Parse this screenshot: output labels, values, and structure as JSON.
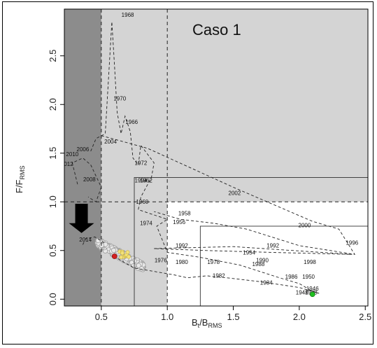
{
  "chart_data": {
    "type": "line",
    "title": "Caso 1",
    "xlabel": {
      "main": "B",
      "sub1": "t",
      "mid": "/B",
      "sub2": "RMS"
    },
    "ylabel": {
      "main": "F/F",
      "sub": "RMS"
    },
    "xlim": [
      0.22,
      2.52
    ],
    "ylim": [
      -0.07,
      2.98
    ],
    "xticks": [
      0.5,
      1.0,
      1.5,
      2.0,
      2.5
    ],
    "xtick_labels": [
      "0.5",
      "1.0",
      "1.5",
      "2.0",
      "2.5"
    ],
    "yticks": [
      0.0,
      0.5,
      1.0,
      1.5,
      2.0,
      2.5
    ],
    "ytick_labels": [
      "0.0",
      "0.5",
      "1.0",
      "1.5",
      "2.0",
      "2.5"
    ],
    "grid": false,
    "zones": [
      {
        "name": "dark-zone",
        "x": [
          0.22,
          0.5
        ],
        "y": [
          -0.07,
          2.98
        ],
        "color": "#8c8c8c"
      },
      {
        "name": "light-zone",
        "x": [
          0.5,
          2.52
        ],
        "y": [
          -0.07,
          2.98
        ],
        "color": "#d4d4d4"
      },
      {
        "name": "white-zone",
        "x": [
          1.0,
          2.52
        ],
        "y": [
          -0.07,
          1.0
        ],
        "color": "#ffffff"
      }
    ],
    "ref_lines": [
      {
        "name": "ref-x-0.5",
        "orient": "v",
        "value": 0.5
      },
      {
        "name": "ref-x-1.0",
        "orient": "v",
        "value": 1.0
      },
      {
        "name": "ref-y-1.0",
        "orient": "h",
        "value": 1.0
      }
    ],
    "boxes": [
      {
        "name": "box-upper",
        "x": [
          0.75,
          2.52
        ],
        "y": [
          -0.07,
          1.25
        ]
      },
      {
        "name": "box-lower",
        "x": [
          1.25,
          2.52
        ],
        "y": [
          -0.07,
          0.75
        ]
      }
    ],
    "trajectory": [
      [
        0.42,
        1.52
      ],
      [
        0.46,
        1.65
      ],
      [
        0.53,
        1.7
      ],
      [
        0.58,
        2.85
      ],
      [
        0.6,
        2.4
      ],
      [
        0.62,
        1.92
      ],
      [
        0.65,
        1.7
      ],
      [
        0.68,
        1.88
      ],
      [
        0.72,
        1.72
      ],
      [
        0.74,
        1.45
      ],
      [
        0.78,
        1.38
      ],
      [
        0.8,
        1.58
      ],
      [
        0.9,
        1.4
      ],
      [
        0.88,
        1.25
      ],
      [
        0.8,
        1.05
      ],
      [
        0.78,
        0.92
      ],
      [
        1.0,
        0.82
      ],
      [
        0.92,
        0.75
      ],
      [
        1.0,
        0.48
      ],
      [
        1.25,
        0.43
      ],
      [
        1.55,
        0.35
      ],
      [
        1.85,
        0.22
      ],
      [
        2.0,
        0.16
      ],
      [
        2.1,
        0.08
      ],
      [
        2.15,
        0.06
      ],
      [
        2.0,
        0.12
      ],
      [
        1.7,
        0.18
      ],
      [
        1.45,
        0.22
      ],
      [
        1.3,
        0.24
      ],
      [
        1.15,
        0.22
      ],
      [
        1.05,
        0.25
      ],
      [
        0.75,
        0.32
      ],
      [
        0.62,
        0.42
      ]
    ],
    "loops": [
      {
        "name": "loop-1992",
        "points": [
          [
            0.9,
            0.52
          ],
          [
            1.5,
            0.54
          ],
          [
            2.4,
            0.46
          ],
          [
            1.8,
            0.48
          ],
          [
            1.3,
            0.5
          ],
          [
            0.9,
            0.52
          ]
        ]
      },
      {
        "name": "loop-2002",
        "points": [
          [
            0.5,
            1.68
          ],
          [
            0.85,
            1.55
          ],
          [
            1.5,
            1.15
          ],
          [
            2.1,
            0.8
          ],
          [
            2.3,
            0.72
          ],
          [
            2.42,
            0.46
          ],
          [
            2.0,
            0.55
          ],
          [
            1.6,
            0.72
          ],
          [
            1.35,
            0.78
          ],
          [
            1.1,
            0.82
          ],
          [
            0.9,
            0.9
          ]
        ]
      },
      {
        "name": "loop-2006",
        "points": [
          [
            0.32,
            1.18
          ],
          [
            0.28,
            1.4
          ],
          [
            0.36,
            1.45
          ],
          [
            0.42,
            1.38
          ],
          [
            0.5,
            1.15
          ],
          [
            0.46,
            1.0
          ],
          [
            0.4,
            1.05
          ]
        ]
      },
      {
        "name": "loop-2014",
        "points": [
          [
            0.36,
            0.56
          ],
          [
            0.38,
            0.62
          ],
          [
            0.45,
            0.64
          ],
          [
            0.52,
            0.58
          ]
        ]
      }
    ],
    "year_labels": [
      {
        "t": "1968",
        "x": 0.7,
        "y": 2.9
      },
      {
        "t": "1970",
        "x": 0.64,
        "y": 2.04
      },
      {
        "t": "1966",
        "x": 0.73,
        "y": 1.8
      },
      {
        "t": "2004",
        "x": 0.57,
        "y": 1.6
      },
      {
        "t": "1972",
        "x": 0.8,
        "y": 1.38
      },
      {
        "t": "2006",
        "x": 0.36,
        "y": 1.52
      },
      {
        "t": "2010",
        "x": 0.28,
        "y": 1.47
      },
      {
        "t": "2012",
        "x": 0.24,
        "y": 1.37
      },
      {
        "t": "2008",
        "x": 0.41,
        "y": 1.21
      },
      {
        "t": "1994",
        "x": 0.8,
        "y": 1.2
      },
      {
        "t": "1962",
        "x": 0.84,
        "y": 1.2
      },
      {
        "t": "1960",
        "x": 0.81,
        "y": 0.98
      },
      {
        "t": "2002",
        "x": 1.51,
        "y": 1.07
      },
      {
        "t": "1958",
        "x": 1.13,
        "y": 0.86
      },
      {
        "t": "1956",
        "x": 1.09,
        "y": 0.77
      },
      {
        "t": "1974",
        "x": 0.84,
        "y": 0.76
      },
      {
        "t": "2000",
        "x": 2.04,
        "y": 0.74
      },
      {
        "t": "1992",
        "x": 1.11,
        "y": 0.53
      },
      {
        "t": "1992",
        "x": 1.8,
        "y": 0.53
      },
      {
        "t": "1996",
        "x": 2.4,
        "y": 0.56
      },
      {
        "t": "1954",
        "x": 1.62,
        "y": 0.46
      },
      {
        "t": "1990",
        "x": 1.72,
        "y": 0.38
      },
      {
        "t": "1998",
        "x": 2.08,
        "y": 0.36
      },
      {
        "t": "1976",
        "x": 0.95,
        "y": 0.38
      },
      {
        "t": "1980",
        "x": 1.11,
        "y": 0.36
      },
      {
        "t": "1978",
        "x": 1.35,
        "y": 0.36
      },
      {
        "t": "1988",
        "x": 1.69,
        "y": 0.34
      },
      {
        "t": "2014",
        "x": 0.38,
        "y": 0.59
      },
      {
        "t": "1982",
        "x": 1.39,
        "y": 0.22
      },
      {
        "t": "1986",
        "x": 1.94,
        "y": 0.21
      },
      {
        "t": "1950",
        "x": 2.07,
        "y": 0.21
      },
      {
        "t": "1984",
        "x": 1.75,
        "y": 0.15
      },
      {
        "t": "1946",
        "x": 2.1,
        "y": 0.09
      },
      {
        "t": "1948",
        "x": 2.02,
        "y": 0.05
      },
      {
        "t": "1938",
        "x": 2.09,
        "y": 0.05
      }
    ],
    "uncertainty_cloud": {
      "center": [
        0.65,
        0.45
      ],
      "spread": [
        0.18,
        0.12
      ],
      "color": "#a0a0a0"
    },
    "current_point": {
      "x": 0.6,
      "y": 0.44,
      "color": "#d42020"
    },
    "target_point": {
      "x": 2.1,
      "y": 0.05,
      "color": "#20c020"
    },
    "arrow": {
      "x": 0.35,
      "y_top": 0.98,
      "y_tip": 0.68,
      "color": "#000000"
    }
  }
}
